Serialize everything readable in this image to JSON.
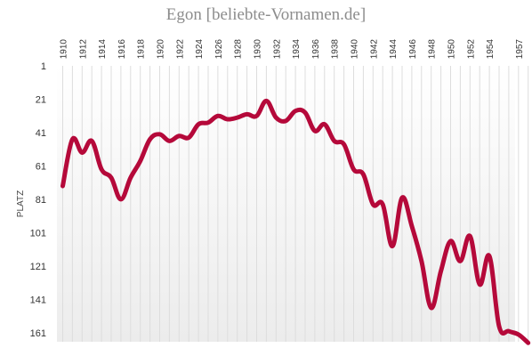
{
  "chart_data": {
    "type": "line",
    "title": "Egon [beliebte-Vornamen.de]",
    "xlabel": "",
    "ylabel": "PLATZ",
    "x_tick_labels": [
      "1910",
      "1912",
      "1914",
      "1916",
      "1918",
      "1920",
      "1922",
      "1924",
      "1926",
      "1928",
      "1930",
      "1932",
      "1934",
      "1936",
      "1938",
      "1940",
      "1942",
      "1944",
      "1946",
      "1948",
      "1950",
      "1952",
      "1954",
      "1957"
    ],
    "y_ticks": [
      1,
      21,
      41,
      61,
      81,
      101,
      121,
      141,
      161
    ],
    "y_inverted": true,
    "ylim": [
      1,
      167
    ],
    "x_range": [
      1910,
      1958
    ],
    "grid": "vertical",
    "legend": "none",
    "line_color": "#b5093a",
    "series": [
      {
        "x": [
          1910,
          1911,
          1912,
          1913,
          1914,
          1915,
          1916,
          1917,
          1918,
          1919,
          1920,
          1921,
          1922,
          1923,
          1924,
          1925,
          1926,
          1927,
          1928,
          1929,
          1930,
          1931,
          1932,
          1933,
          1934,
          1935,
          1936,
          1937,
          1938,
          1939,
          1940,
          1941,
          1942,
          1943,
          1944,
          1945,
          1946,
          1947,
          1948,
          1949,
          1950,
          1951,
          1952,
          1953,
          1954,
          1955,
          1956,
          1957,
          1958
        ],
        "values": [
          73,
          45,
          53,
          46,
          63,
          68,
          81,
          68,
          58,
          45,
          42,
          46,
          43,
          44,
          36,
          35,
          31,
          33,
          32,
          30,
          31,
          22,
          32,
          34,
          28,
          29,
          40,
          36,
          46,
          48,
          63,
          66,
          84,
          84,
          109,
          80,
          97,
          118,
          146,
          124,
          106,
          118,
          103,
          132,
          115,
          157,
          160,
          162,
          167
        ]
      }
    ]
  }
}
